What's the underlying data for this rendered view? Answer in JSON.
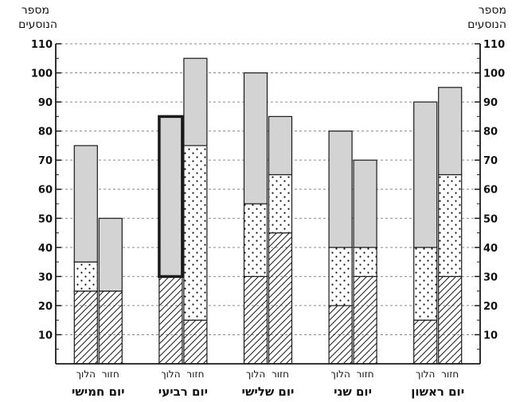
{
  "chart_data": {
    "type": "bar",
    "ylabel": "מספר הנוסעים",
    "ylim": [
      0,
      110
    ],
    "yticks": [
      10,
      20,
      30,
      40,
      50,
      60,
      70,
      80,
      90,
      100,
      110
    ],
    "bar_labels": {
      "go": "הלוך",
      "return": "חזור"
    },
    "categories": [
      "יום ראשון",
      "יום שני",
      "יום שלישי",
      "יום רביעי",
      "יום חמישי"
    ],
    "segment_order": [
      "hatched",
      "dotted",
      "gray"
    ],
    "bars": [
      {
        "day": "יום ראשון",
        "direction": "go",
        "segments": [
          15,
          25,
          50
        ]
      },
      {
        "day": "יום ראשון",
        "direction": "return",
        "segments": [
          30,
          35,
          30
        ]
      },
      {
        "day": "יום שני",
        "direction": "go",
        "segments": [
          20,
          20,
          40
        ]
      },
      {
        "day": "יום שני",
        "direction": "return",
        "segments": [
          30,
          10,
          30
        ]
      },
      {
        "day": "יום שלישי",
        "direction": "go",
        "segments": [
          30,
          25,
          45
        ]
      },
      {
        "day": "יום שלישי",
        "direction": "return",
        "segments": [
          45,
          20,
          20
        ]
      },
      {
        "day": "יום רביעי",
        "direction": "go",
        "segments": [
          30,
          0,
          55
        ],
        "highlight": "gray"
      },
      {
        "day": "יום רביעי",
        "direction": "return",
        "segments": [
          15,
          60,
          30
        ]
      },
      {
        "day": "יום חמישי",
        "direction": "go",
        "segments": [
          25,
          10,
          40
        ]
      },
      {
        "day": "יום חמישי",
        "direction": "return",
        "segments": [
          25,
          0,
          25
        ]
      }
    ],
    "grid": true,
    "colors": {
      "gray": "#d3d3d3",
      "ink": "#1a1a1a"
    }
  }
}
